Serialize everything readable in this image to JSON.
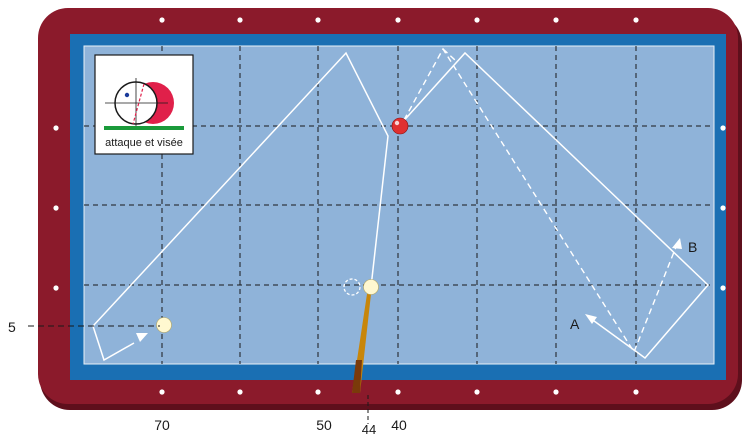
{
  "inset": {
    "caption": "attaque et visée"
  },
  "labels": {
    "point_a": "A",
    "point_b": "B",
    "left_marker": "5",
    "bottom_70": "70",
    "bottom_50": "50",
    "bottom_44": "44",
    "bottom_40": "40"
  },
  "colors": {
    "rail": "#8b1a2b",
    "rail_edge": "#5e0f1c",
    "cushion_band": "#1a6fb3",
    "cloth": "#8fb3d9",
    "diamond": "#ffffff",
    "path_line": "#ffffff",
    "grid_line": "#1a1a1a",
    "red_ball": "#e03030",
    "white_ball": "#fff8d0",
    "cue_wood": "#c8860a",
    "inset_red": "#e0204a"
  },
  "icons": {
    "object_ball": "red-ball-icon",
    "cue_ball": "cue-ball-icon",
    "second_ball": "white-ball-icon",
    "cue": "cue-stick-icon",
    "aim_inset": "aim-diagram-icon"
  }
}
